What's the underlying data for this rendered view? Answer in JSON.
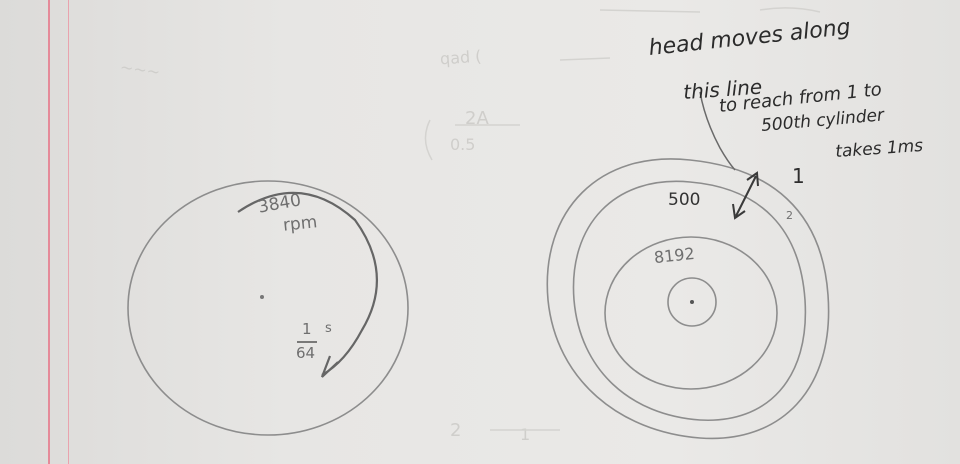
{
  "left_disk": {
    "speed_value": "3840",
    "speed_unit": "rpm",
    "fraction_numerator": "1",
    "fraction_denominator": "64",
    "fraction_unit": "s"
  },
  "right_disk": {
    "outer_label": "500",
    "inner_label": "8192",
    "arrow_label": "1",
    "side_label": "2"
  },
  "annotation": {
    "line1": "head moves along",
    "line2": "this line",
    "line3": "to reach from 1 to",
    "line4": "500th cylinder",
    "line5": "takes 1ms"
  },
  "colors": {
    "paper": "#e8e7e5",
    "margin_red": "#e58a99",
    "pencil": "#8a8a8a",
    "ink": "#2b2b2b"
  }
}
